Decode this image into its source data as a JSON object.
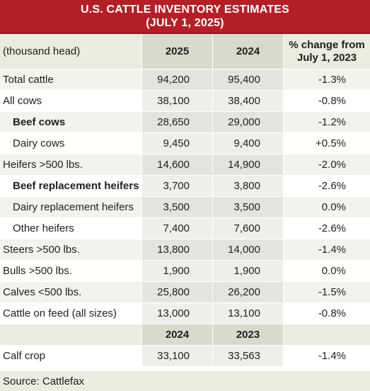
{
  "title": {
    "line1": "U.S. CATTLE INVENTORY ESTIMATES",
    "line2": "(JULY 1, 2025)"
  },
  "header": {
    "units": "(thousand head)",
    "col_2025": "2025",
    "col_2024": "2024",
    "change_line1": "% change from",
    "change_line2": "July 1, 2023"
  },
  "rows": [
    {
      "label": "Total cattle",
      "y2025": "94,200",
      "y2024": "95,400",
      "change": "-1.3%"
    },
    {
      "label": "All cows",
      "y2025": "38,100",
      "y2024": "38,400",
      "change": "-0.8%"
    },
    {
      "label": "Beef cows",
      "y2025": "28,650",
      "y2024": "29,000",
      "change": "-1.2%"
    },
    {
      "label": "Dairy cows",
      "y2025": "9,450",
      "y2024": "9,400",
      "change": "+0.5%"
    },
    {
      "label": "Heifers >500 lbs.",
      "y2025": "14,600",
      "y2024": "14,900",
      "change": "-2.0%"
    },
    {
      "label": "Beef replacement heifers",
      "y2025": "3,700",
      "y2024": "3,800",
      "change": "-2.6%"
    },
    {
      "label": "Dairy replacement heifers",
      "y2025": "3,500",
      "y2024": "3,500",
      "change": "0.0%"
    },
    {
      "label": "Other heifers",
      "y2025": "7,400",
      "y2024": "7,600",
      "change": "-2.6%"
    },
    {
      "label": "Steers >500 lbs.",
      "y2025": "13,800",
      "y2024": "14,000",
      "change": "-1.4%"
    },
    {
      "label": "Bulls >500 lbs.",
      "y2025": "1,900",
      "y2024": "1,900",
      "change": "0.0%"
    },
    {
      "label": "Calves <500 lbs.",
      "y2025": "25,800",
      "y2024": "26,200",
      "change": "-1.5%"
    },
    {
      "label": "Cattle on feed (all sizes)",
      "y2025": "13,000",
      "y2024": "13,100",
      "change": "-0.8%"
    }
  ],
  "subheader": {
    "col_a": "2024",
    "col_b": "2023"
  },
  "calf_crop": {
    "label": "Calf crop",
    "a": "33,100",
    "b": "33,563",
    "change": "-1.4%"
  },
  "source": "Source: Cattlefax"
}
